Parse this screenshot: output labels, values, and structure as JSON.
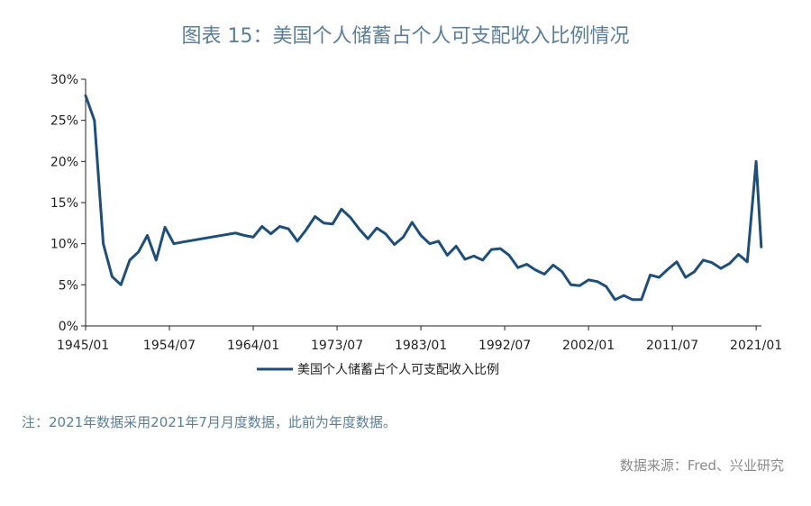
{
  "title": "图表 15：美国个人储蓄占个人可支配收入比例情况",
  "note": "注：2021年数据采用2021年7月月度数据，此前为年度数据。",
  "source": "数据来源：Fred、兴业研究",
  "colors": {
    "line": "#1f4e79",
    "title": "#5b7f98",
    "axis": "#222222"
  },
  "chart_data": {
    "type": "line",
    "title": "图表 15：美国个人储蓄占个人可支配收入比例情况",
    "xlabel": "",
    "ylabel": "",
    "ylim": [
      0,
      30
    ],
    "y_ticks": [
      "0%",
      "5%",
      "10%",
      "15%",
      "20%",
      "25%",
      "30%"
    ],
    "y_tick_values": [
      0,
      5,
      10,
      15,
      20,
      25,
      30
    ],
    "x_ticks": [
      "1945/01",
      "1954/07",
      "1964/01",
      "1973/07",
      "1983/01",
      "1992/07",
      "2002/01",
      "2011/07",
      "2021/01"
    ],
    "x_tick_values": [
      1945.0,
      1954.5,
      1964.0,
      1973.5,
      1983.0,
      1992.5,
      2002.0,
      2011.5,
      2021.0
    ],
    "xlim": [
      1945.0,
      2021.6
    ],
    "grid": false,
    "legend": "bottom",
    "series": [
      {
        "name": "美国个人储蓄占个人可支配收入比例",
        "x": [
          1945,
          1946,
          1947,
          1948,
          1949,
          1950,
          1951,
          1952,
          1953,
          1954,
          1955,
          1956,
          1962,
          1963,
          1964,
          1965,
          1966,
          1967,
          1968,
          1969,
          1970,
          1971,
          1972,
          1973,
          1974,
          1975,
          1976,
          1977,
          1978,
          1979,
          1980,
          1981,
          1982,
          1983,
          1984,
          1985,
          1986,
          1987,
          1988,
          1989,
          1990,
          1991,
          1992,
          1993,
          1994,
          1995,
          1996,
          1997,
          1998,
          1999,
          2000,
          2001,
          2002,
          2003,
          2004,
          2005,
          2006,
          2007,
          2008,
          2009,
          2010,
          2011,
          2012,
          2013,
          2014,
          2015,
          2016,
          2017,
          2018,
          2019,
          2020,
          2021,
          2021.58
        ],
        "y": [
          28.0,
          25.0,
          10.0,
          6.0,
          5.0,
          8.0,
          9.0,
          11.0,
          8.0,
          12.0,
          10.0,
          10.2,
          11.3,
          11.0,
          10.8,
          12.1,
          11.2,
          12.1,
          11.8,
          10.3,
          11.7,
          13.3,
          12.5,
          12.4,
          14.2,
          13.2,
          11.8,
          10.6,
          11.9,
          11.2,
          9.9,
          10.8,
          12.6,
          11.0,
          10.0,
          10.3,
          8.6,
          9.7,
          8.1,
          8.5,
          8.0,
          9.3,
          9.4,
          8.6,
          7.1,
          7.5,
          6.8,
          6.3,
          7.4,
          6.6,
          5.0,
          4.9,
          5.6,
          5.4,
          4.8,
          3.2,
          3.7,
          3.2,
          3.2,
          6.2,
          5.9,
          6.9,
          7.8,
          5.9,
          6.6,
          8.0,
          7.7,
          7.0,
          7.6,
          8.7,
          7.8,
          20.0,
          9.6
        ]
      }
    ]
  }
}
